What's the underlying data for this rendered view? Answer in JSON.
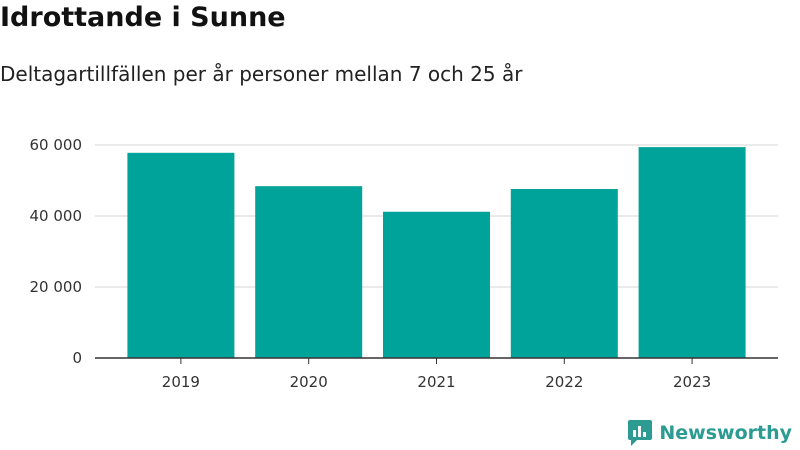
{
  "header": {
    "title": "Idrottande i Sunne",
    "subtitle": "Deltagartillfällen per år personer mellan 7 och 25 år"
  },
  "chart_data": {
    "type": "bar",
    "categories": [
      "2019",
      "2020",
      "2021",
      "2022",
      "2023"
    ],
    "values": [
      57800,
      48400,
      41200,
      47600,
      59400
    ],
    "ylim": [
      0,
      60000
    ],
    "yticks": [
      0,
      20000,
      40000,
      60000
    ],
    "ytick_labels": [
      "0",
      "20 000",
      "40 000",
      "60 000"
    ],
    "grid": true,
    "bar_color": "#00a39a",
    "title": "",
    "xlabel": "",
    "ylabel": ""
  },
  "brand": {
    "name": "Newsworthy",
    "color": "#2c9c93",
    "icon": "newsworthy-logo-icon"
  }
}
